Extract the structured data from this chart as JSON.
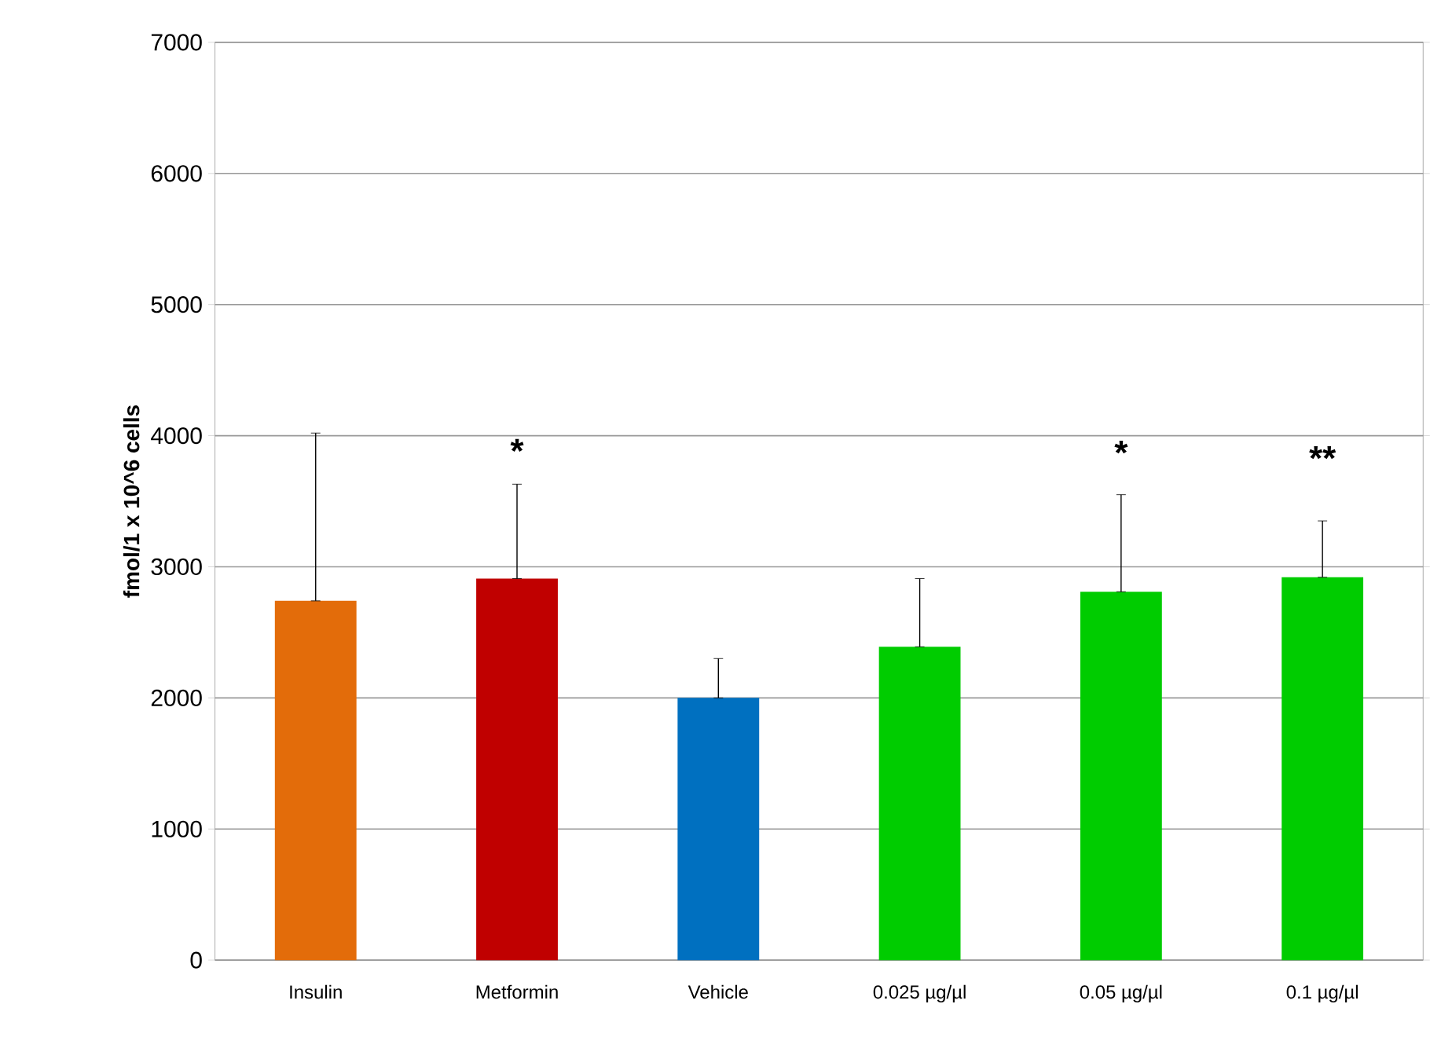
{
  "chart_data": {
    "type": "bar",
    "ylabel": "fmol/1 x 10^6 cells",
    "categories": [
      "Insulin",
      "Metformin",
      "Vehicle",
      "0.025 µg/µl",
      "0.05 µg/µl",
      "0.1 µg/µl"
    ],
    "values": [
      2740,
      2910,
      2000,
      2390,
      2810,
      2920
    ],
    "colors": [
      "#e36c0a",
      "#c00000",
      "#0070c0",
      "#00cc00",
      "#00cc00",
      "#00cc00"
    ],
    "errors": [
      [
        2740,
        4020
      ],
      [
        2910,
        3630
      ],
      [
        2000,
        2300
      ],
      [
        2390,
        2910
      ],
      [
        2810,
        3550
      ],
      [
        2920,
        3350
      ]
    ],
    "ylim": [
      0,
      7000
    ],
    "yticks": [
      0,
      1000,
      2000,
      3000,
      4000,
      5000,
      6000,
      7000
    ],
    "grid": "y",
    "annotations": [
      "*",
      "*",
      "**"
    ]
  }
}
